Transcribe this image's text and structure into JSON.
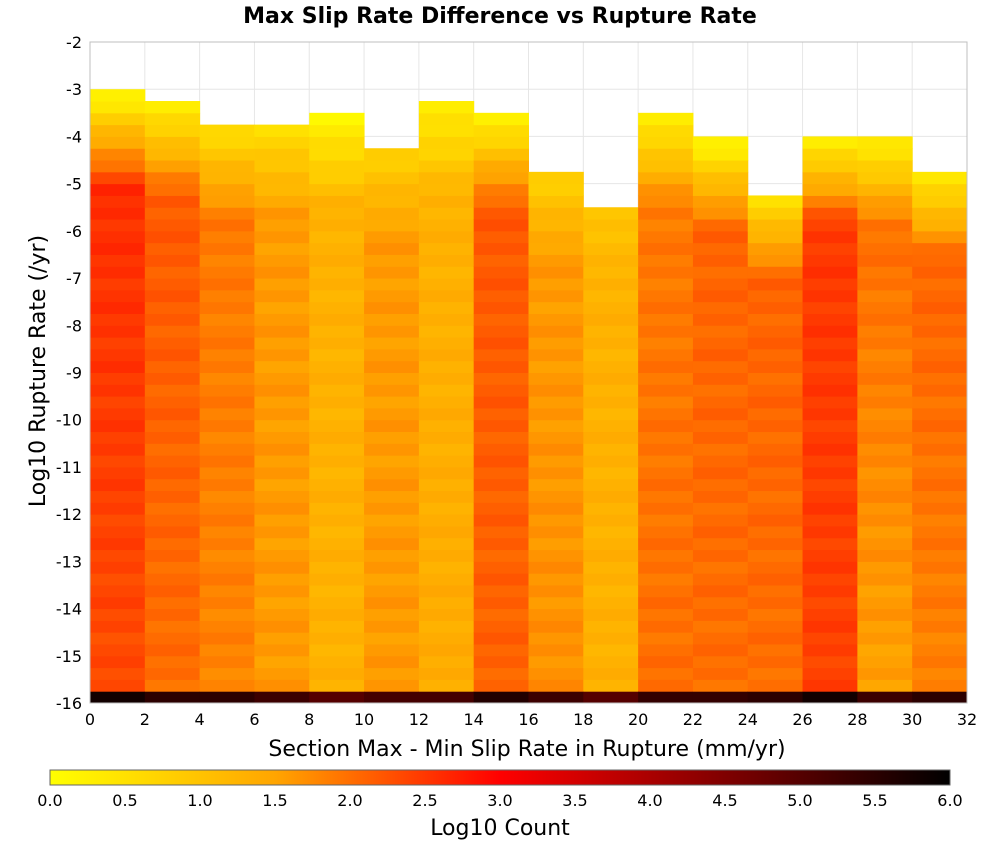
{
  "chart_data": {
    "type": "heatmap",
    "title": "Max Slip Rate Difference vs Rupture Rate",
    "xlabel": "Section Max - Min Slip Rate in Rupture (mm/yr)",
    "ylabel": "Log10 Rupture Rate (/yr)",
    "xlim": [
      0,
      32
    ],
    "ylim": [
      -16,
      -2
    ],
    "x_ticks": [
      "0",
      "2",
      "4",
      "6",
      "8",
      "10",
      "12",
      "14",
      "16",
      "18",
      "20",
      "22",
      "24",
      "26",
      "28",
      "30",
      "32"
    ],
    "y_ticks": [
      "-2",
      "-3",
      "-4",
      "-5",
      "-6",
      "-7",
      "-8",
      "-9",
      "-10",
      "-11",
      "-12",
      "-13",
      "-14",
      "-15",
      "-16"
    ],
    "x_bin_width": 2,
    "y_bin_height": 0.25,
    "grid": true,
    "columns": [
      {
        "x_range": [
          0,
          2
        ],
        "top": -3.0,
        "top_value": 0.2,
        "mid_value": 2.6,
        "bottom_value": 2.3,
        "bottom_row_value": 5.8
      },
      {
        "x_range": [
          2,
          4
        ],
        "top": -3.25,
        "top_value": 0.3,
        "mid_value": 2.2,
        "bottom_value": 2.0,
        "bottom_row_value": 5.5
      },
      {
        "x_range": [
          4,
          6
        ],
        "top": -3.75,
        "top_value": 0.6,
        "mid_value": 1.9,
        "bottom_value": 1.8,
        "bottom_row_value": 5.5
      },
      {
        "x_range": [
          6,
          8
        ],
        "top": -3.75,
        "top_value": 0.6,
        "mid_value": 1.6,
        "bottom_value": 1.6,
        "bottom_row_value": 5.3
      },
      {
        "x_range": [
          8,
          10
        ],
        "top": -3.5,
        "top_value": 0.2,
        "mid_value": 1.3,
        "bottom_value": 1.3,
        "bottom_row_value": 5.0
      },
      {
        "x_range": [
          10,
          12
        ],
        "top": -4.25,
        "top_value": 0.8,
        "mid_value": 1.6,
        "bottom_value": 1.6,
        "bottom_row_value": 5.2
      },
      {
        "x_range": [
          12,
          14
        ],
        "top": -3.25,
        "top_value": 0.3,
        "mid_value": 1.3,
        "bottom_value": 1.4,
        "bottom_row_value": 5.2
      },
      {
        "x_range": [
          14,
          16
        ],
        "top": -3.5,
        "top_value": 0.3,
        "mid_value": 2.2,
        "bottom_value": 2.1,
        "bottom_row_value": 5.6
      },
      {
        "x_range": [
          16,
          18
        ],
        "top": -4.75,
        "top_value": 0.8,
        "mid_value": 1.6,
        "bottom_value": 1.7,
        "bottom_row_value": 5.3
      },
      {
        "x_range": [
          18,
          20
        ],
        "top": -5.5,
        "top_value": 1.0,
        "mid_value": 1.3,
        "bottom_value": 1.3,
        "bottom_row_value": 5.0
      },
      {
        "x_range": [
          20,
          22
        ],
        "top": -3.5,
        "top_value": 0.3,
        "mid_value": 1.9,
        "bottom_value": 2.0,
        "bottom_row_value": 5.4
      },
      {
        "x_range": [
          22,
          24
        ],
        "top": -4.0,
        "top_value": 0.2,
        "mid_value": 2.1,
        "bottom_value": 2.0,
        "bottom_row_value": 5.4
      },
      {
        "x_range": [
          24,
          26
        ],
        "top": -5.25,
        "top_value": 0.6,
        "mid_value": 2.1,
        "bottom_value": 2.0,
        "bottom_row_value": 5.5
      },
      {
        "x_range": [
          26,
          28
        ],
        "top": -4.0,
        "top_value": 0.3,
        "mid_value": 2.5,
        "bottom_value": 2.4,
        "bottom_row_value": 5.8
      },
      {
        "x_range": [
          28,
          30
        ],
        "top": -4.0,
        "top_value": 0.3,
        "mid_value": 2.0,
        "bottom_value": 1.5,
        "bottom_row_value": 5.3
      },
      {
        "x_range": [
          30,
          32
        ],
        "top": -4.75,
        "top_value": 0.4,
        "mid_value": 2.1,
        "bottom_value": 1.8,
        "bottom_row_value": 5.5
      }
    ],
    "colorbar": {
      "label": "Log10 Count",
      "range": [
        0.0,
        6.0
      ],
      "ticks": [
        "0.0",
        "0.5",
        "1.0",
        "1.5",
        "2.0",
        "2.5",
        "3.0",
        "3.5",
        "4.0",
        "4.5",
        "5.0",
        "5.5",
        "6.0"
      ],
      "colormap": [
        "#ffff00",
        "#ffa500",
        "#ff0000",
        "#000000"
      ]
    }
  }
}
